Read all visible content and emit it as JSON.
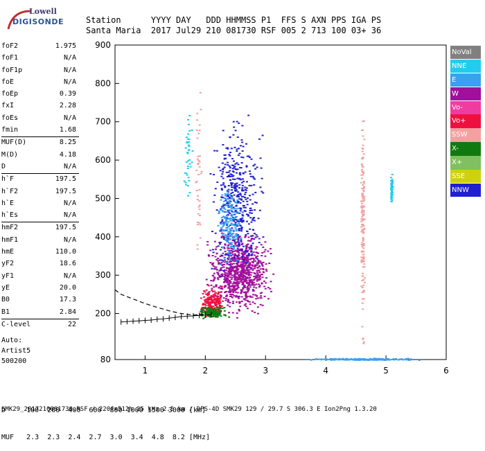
{
  "logo": {
    "brand": "Lowell",
    "product": "DIGISONDE"
  },
  "header": {
    "row1": "Station      YYYY DAY   DDD HHMMSS P1  FFS S AXN PPS IGA PS",
    "row2": "Santa Maria  2017 Jul29 210 081730 RSF 005 2 713 100 03+ 36"
  },
  "params": [
    {
      "label": "foF2",
      "value": "1.975"
    },
    {
      "label": "foF1",
      "value": "N/A"
    },
    {
      "label": "foF1p",
      "value": "N/A"
    },
    {
      "label": "foE",
      "value": "N/A"
    },
    {
      "label": "foEp",
      "value": "0.39"
    },
    {
      "label": "fxI",
      "value": "2.28"
    },
    {
      "label": "foEs",
      "value": "N/A"
    },
    {
      "label": "fmin",
      "value": "1.68"
    },
    {
      "label": "MUF(D)",
      "value": "8.25"
    },
    {
      "label": "M(D)",
      "value": "4.18"
    },
    {
      "label": "D",
      "value": "N/A"
    },
    {
      "label": "h`F",
      "value": "197.5"
    },
    {
      "label": "h`F2",
      "value": "197.5"
    },
    {
      "label": "h`E",
      "value": "N/A"
    },
    {
      "label": "h`Es",
      "value": "N/A"
    },
    {
      "label": "hmF2",
      "value": "197.5"
    },
    {
      "label": "hmF1",
      "value": "N/A"
    },
    {
      "label": "hmE",
      "value": "110.0"
    },
    {
      "label": "yF2",
      "value": "18.6"
    },
    {
      "label": "yF1",
      "value": "N/A"
    },
    {
      "label": "yE",
      "value": "20.0"
    },
    {
      "label": "B0",
      "value": "17.3"
    },
    {
      "label": "B1",
      "value": "2.84"
    },
    {
      "label": "C-level",
      "value": "22"
    }
  ],
  "auto": {
    "line1": "Auto:",
    "line2": "Artist5",
    "line3": "500200"
  },
  "bottom": {
    "d_row": "D     100  200  400  600  800 1000 1500 3000 [km]",
    "muf_row": "MUF   2.3  2.3  2.4  2.7  3.0  3.4  4.8  8.2 [MHz]"
  },
  "footer": "SMK29_2017210081730.RSF / 220fx512h 25 kHz 2.5 km / DPS-4D SMK29 129 / 29.7 S 306.3 E Ion2Png 1.3.20",
  "legend": [
    {
      "label": "NoVal",
      "color": "#808080"
    },
    {
      "label": "NNE",
      "color": "#22ccee"
    },
    {
      "label": "E",
      "color": "#3aa0f0"
    },
    {
      "label": "W",
      "color": "#a0109a"
    },
    {
      "label": "Vo-",
      "color": "#f03ca0"
    },
    {
      "label": "Vo+",
      "color": "#f01040"
    },
    {
      "label": "SSW",
      "color": "#f4a0a0"
    },
    {
      "label": "X-",
      "color": "#107a10"
    },
    {
      "label": "X+",
      "color": "#80c060"
    },
    {
      "label": "SSE",
      "color": "#d0d010"
    },
    {
      "label": "NNW",
      "color": "#2020d0"
    }
  ],
  "chart_data": {
    "type": "scatter",
    "xlim": [
      0.5,
      6.0
    ],
    "ylim": [
      80,
      900
    ],
    "x_ticks": [
      "1",
      "2",
      "3",
      "4",
      "5",
      "6"
    ],
    "y_ticks": [
      "80",
      "200",
      "300",
      "400",
      "500",
      "600",
      "700",
      "800",
      "900"
    ],
    "x_tick_values": [
      1,
      2,
      3,
      4,
      5,
      6
    ],
    "y_tick_values": [
      80,
      200,
      300,
      400,
      500,
      600,
      700,
      800,
      900
    ],
    "profile_x": [
      0.5,
      0.6,
      0.8,
      1.0,
      1.2,
      1.4,
      1.6,
      1.8,
      1.975
    ],
    "profile_y": [
      262,
      250,
      238,
      226,
      216,
      207,
      200,
      196,
      197.5
    ],
    "trace_x": [
      0.6,
      0.7,
      0.8,
      0.9,
      1.0,
      1.1,
      1.2,
      1.3,
      1.4,
      1.5,
      1.6,
      1.7,
      1.8,
      1.9,
      2.0,
      2.1
    ],
    "trace_y": [
      178,
      179,
      180,
      181,
      182,
      183,
      185,
      186,
      188,
      190,
      192,
      193,
      194,
      195,
      196,
      197
    ],
    "clusters": [
      {
        "cx": 2.55,
        "cy": 310,
        "sx": 0.3,
        "sy": 60,
        "n": 900,
        "color": "#a0109a"
      },
      {
        "cx": 2.5,
        "cy": 500,
        "sx": 0.25,
        "sy": 120,
        "n": 450,
        "color": "#2020d0"
      },
      {
        "cx": 2.4,
        "cy": 430,
        "sx": 0.12,
        "sy": 60,
        "n": 180,
        "color": "#3aa0f0"
      },
      {
        "cx": 2.1,
        "cy": 230,
        "sx": 0.12,
        "sy": 25,
        "n": 200,
        "color": "#f01040"
      },
      {
        "cx": 2.1,
        "cy": 205,
        "sx": 0.15,
        "sy": 10,
        "n": 120,
        "color": "#107a10"
      },
      {
        "cx": 4.6,
        "cy": 450,
        "sx": 0.02,
        "sy": 200,
        "n": 160,
        "color": "#f4a0a0"
      },
      {
        "cx": 4.6,
        "cy": 82,
        "sx": 0.5,
        "sy": 1.5,
        "n": 250,
        "color": "#3aa0f0"
      },
      {
        "cx": 5.08,
        "cy": 530,
        "sx": 0.01,
        "sy": 25,
        "n": 60,
        "color": "#22ccee"
      },
      {
        "cx": 1.7,
        "cy": 600,
        "sx": 0.04,
        "sy": 80,
        "n": 40,
        "color": "#22ccee"
      },
      {
        "cx": 1.88,
        "cy": 550,
        "sx": 0.03,
        "sy": 150,
        "n": 40,
        "color": "#f4a0a0"
      }
    ]
  }
}
